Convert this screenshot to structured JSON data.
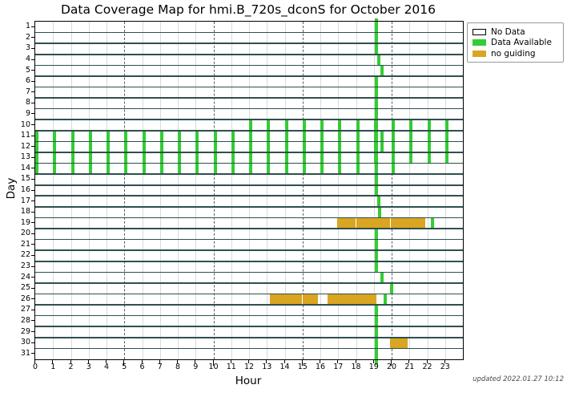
{
  "updated_note": "updated 2022.01.27 10:12",
  "colors": {
    "data_available": "#32cd32",
    "no_guiding": "#daa520",
    "no_data": "#ffffff",
    "grid_minor": "#d8dbdb",
    "grid_major": "#5a5f5f",
    "day_line": "#2f4f4f",
    "axis": "#000000"
  },
  "legend": {
    "items": [
      {
        "label": "No Data",
        "swatch": "#ffffff",
        "border": "#000000"
      },
      {
        "label": "Data Available",
        "swatch": "#32cd32",
        "border": "#32cd32"
      },
      {
        "label": "no guiding",
        "swatch": "#daa520",
        "border": "#daa520"
      }
    ]
  },
  "chart_data": {
    "type": "heatmap",
    "title": "Data Coverage Map for hmi.B_720s_dconS for October 2016",
    "xlabel": "Hour",
    "ylabel": "Day",
    "xlim": [
      0,
      24
    ],
    "ylim": [
      1,
      31
    ],
    "x_tick_labels": [
      "0",
      "1",
      "2",
      "3",
      "4",
      "5",
      "6",
      "7",
      "8",
      "9",
      "10",
      "11",
      "12",
      "13",
      "14",
      "15",
      "16",
      "17",
      "18",
      "19",
      "20",
      "21",
      "22",
      "23"
    ],
    "y_tick_labels": [
      "1",
      "2",
      "3",
      "4",
      "5",
      "6",
      "7",
      "8",
      "9",
      "10",
      "11",
      "12",
      "13",
      "14",
      "15",
      "16",
      "17",
      "18",
      "19",
      "20",
      "21",
      "22",
      "23",
      "24",
      "25",
      "26",
      "27",
      "28",
      "29",
      "30",
      "31"
    ],
    "major_gridline_hours": [
      5,
      10,
      15,
      20
    ],
    "mark_width_hours": 0.18,
    "full_column_hour": 19.05,
    "green_marks": {
      "1": [
        19.05
      ],
      "2": [
        19.05
      ],
      "3": [
        19.05
      ],
      "4": [
        19.2
      ],
      "5": [
        19.35
      ],
      "6": [
        19.05
      ],
      "7": [
        19.05
      ],
      "8": [
        19.05
      ],
      "9": [
        19.05
      ],
      "10": [
        12,
        13,
        14,
        15,
        16,
        17,
        18,
        19,
        19.05,
        20,
        21,
        22,
        23
      ],
      "11": [
        0,
        1,
        2,
        3,
        4,
        5,
        6,
        7,
        8,
        9,
        10,
        11,
        12,
        13,
        14,
        15,
        16,
        17,
        18,
        19,
        19.05,
        19.35,
        20,
        21,
        22,
        23
      ],
      "12": [
        0,
        1,
        2,
        3,
        4,
        5,
        6,
        7,
        8,
        9,
        10,
        11,
        12,
        13,
        14,
        15,
        16,
        17,
        18,
        19,
        19.05,
        19.35,
        20,
        21,
        22,
        23
      ],
      "13": [
        0,
        1,
        2,
        3,
        4,
        5,
        6,
        7,
        8,
        9,
        10,
        11,
        12,
        13,
        14,
        15,
        16,
        17,
        18,
        19,
        19.05,
        20,
        21,
        22,
        23
      ],
      "14": [
        0,
        1,
        2,
        3,
        4,
        5,
        6,
        7,
        8,
        9,
        10,
        11,
        12,
        13,
        14,
        15,
        16,
        17,
        18,
        19.05,
        20
      ],
      "15": [
        19.05
      ],
      "16": [
        19.05
      ],
      "17": [
        19.2
      ],
      "18": [
        19.25
      ],
      "19": [
        22.2
      ],
      "20": [
        19.05
      ],
      "21": [
        19.05
      ],
      "22": [
        19.05
      ],
      "23": [
        19.05
      ],
      "24": [
        19.35
      ],
      "25": [
        19.9
      ],
      "26": [
        19.55
      ],
      "27": [
        19.05
      ],
      "28": [
        19.05
      ],
      "29": [
        19.05
      ],
      "30": [
        19.05
      ],
      "31": [
        19.05
      ]
    },
    "gold_segments": {
      "19": [
        [
          16.95,
          17.98
        ],
        [
          18.02,
          19.93
        ],
        [
          19.97,
          21.9
        ]
      ],
      "26": [
        [
          13.17,
          14.98
        ],
        [
          15.02,
          15.87
        ],
        [
          16.42,
          19.16
        ]
      ],
      "30": [
        [
          19.9,
          20.9
        ]
      ]
    }
  }
}
